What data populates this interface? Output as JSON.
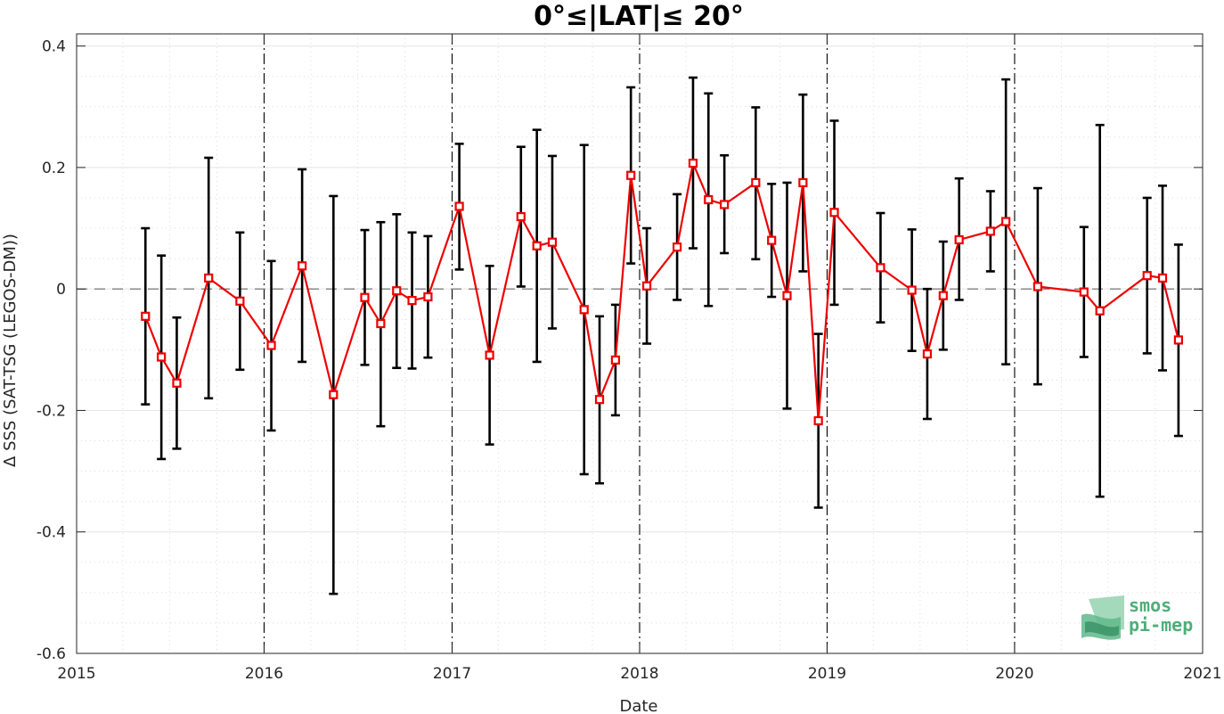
{
  "chart_data": {
    "type": "line",
    "title": "0°≤|LAT|≤ 20°",
    "xlabel": "Date",
    "ylabel": "Δ SSS (SAT-TSG (LEGOS-DM))",
    "xlim": [
      "2015-01-01",
      "2021-01-01"
    ],
    "ylim": [
      -0.6,
      0.42
    ],
    "x_ticks": [
      "2015",
      "2016",
      "2017",
      "2018",
      "2019",
      "2020",
      "2021"
    ],
    "y_ticks": [
      {
        "value": 0.4,
        "label": "0.4"
      },
      {
        "value": 0.2,
        "label": "0.2"
      },
      {
        "value": 0,
        "label": "0"
      },
      {
        "value": -0.2,
        "label": "-0.2"
      },
      {
        "value": -0.4,
        "label": "-0.4"
      },
      {
        "value": -0.6,
        "label": "-0.6"
      }
    ],
    "year_boundaries": [
      "2016-01-01",
      "2017-01-01",
      "2018-01-01",
      "2019-01-01",
      "2020-01-01"
    ],
    "reference_line": 0,
    "grid": "minor dotted",
    "series": [
      {
        "color": "#ee0000",
        "marker": "square",
        "errorbar_color": "#000000",
        "points": [
          {
            "date": "2015-05-15",
            "mean": -0.045,
            "low": -0.19,
            "high": 0.1
          },
          {
            "date": "2015-06-15",
            "mean": -0.112,
            "low": -0.28,
            "high": 0.055
          },
          {
            "date": "2015-07-15",
            "mean": -0.155,
            "low": -0.263,
            "high": -0.047
          },
          {
            "date": "2015-09-15",
            "mean": 0.018,
            "low": -0.18,
            "high": 0.216
          },
          {
            "date": "2015-11-15",
            "mean": -0.02,
            "low": -0.133,
            "high": 0.093
          },
          {
            "date": "2016-01-15",
            "mean": -0.093,
            "low": -0.233,
            "high": 0.046
          },
          {
            "date": "2016-03-15",
            "mean": 0.038,
            "low": -0.12,
            "high": 0.197
          },
          {
            "date": "2016-05-15",
            "mean": -0.174,
            "low": -0.502,
            "high": 0.153
          },
          {
            "date": "2016-07-15",
            "mean": -0.014,
            "low": -0.125,
            "high": 0.097
          },
          {
            "date": "2016-08-15",
            "mean": -0.057,
            "low": -0.226,
            "high": 0.11
          },
          {
            "date": "2016-09-15",
            "mean": -0.003,
            "low": -0.13,
            "high": 0.123
          },
          {
            "date": "2016-10-15",
            "mean": -0.019,
            "low": -0.131,
            "high": 0.093
          },
          {
            "date": "2016-11-15",
            "mean": -0.013,
            "low": -0.113,
            "high": 0.087
          },
          {
            "date": "2017-01-15",
            "mean": 0.136,
            "low": 0.032,
            "high": 0.239
          },
          {
            "date": "2017-03-15",
            "mean": -0.109,
            "low": -0.256,
            "high": 0.038
          },
          {
            "date": "2017-05-15",
            "mean": 0.119,
            "low": 0.004,
            "high": 0.234
          },
          {
            "date": "2017-06-15",
            "mean": 0.071,
            "low": -0.12,
            "high": 0.262
          },
          {
            "date": "2017-07-15",
            "mean": 0.077,
            "low": -0.065,
            "high": 0.219
          },
          {
            "date": "2017-09-15",
            "mean": -0.034,
            "low": -0.305,
            "high": 0.237
          },
          {
            "date": "2017-10-15",
            "mean": -0.182,
            "low": -0.32,
            "high": -0.045
          },
          {
            "date": "2017-11-15",
            "mean": -0.117,
            "low": -0.208,
            "high": -0.026
          },
          {
            "date": "2017-12-15",
            "mean": 0.187,
            "low": 0.042,
            "high": 0.332
          },
          {
            "date": "2018-01-15",
            "mean": 0.005,
            "low": -0.09,
            "high": 0.1
          },
          {
            "date": "2018-03-15",
            "mean": 0.069,
            "low": -0.018,
            "high": 0.156
          },
          {
            "date": "2018-04-15",
            "mean": 0.207,
            "low": 0.067,
            "high": 0.348
          },
          {
            "date": "2018-05-15",
            "mean": 0.147,
            "low": -0.028,
            "high": 0.322
          },
          {
            "date": "2018-06-15",
            "mean": 0.139,
            "low": 0.059,
            "high": 0.22
          },
          {
            "date": "2018-08-15",
            "mean": 0.175,
            "low": 0.049,
            "high": 0.299
          },
          {
            "date": "2018-09-15",
            "mean": 0.08,
            "low": -0.013,
            "high": 0.173
          },
          {
            "date": "2018-10-15",
            "mean": -0.011,
            "low": -0.197,
            "high": 0.175
          },
          {
            "date": "2018-11-15",
            "mean": 0.175,
            "low": 0.029,
            "high": 0.32
          },
          {
            "date": "2018-12-15",
            "mean": -0.217,
            "low": -0.36,
            "high": -0.074
          },
          {
            "date": "2019-01-15",
            "mean": 0.126,
            "low": -0.026,
            "high": 0.277
          },
          {
            "date": "2019-04-15",
            "mean": 0.035,
            "low": -0.055,
            "high": 0.125
          },
          {
            "date": "2019-06-15",
            "mean": -0.002,
            "low": -0.102,
            "high": 0.098
          },
          {
            "date": "2019-07-15",
            "mean": -0.107,
            "low": -0.214,
            "high": 0.0
          },
          {
            "date": "2019-08-15",
            "mean": -0.011,
            "low": -0.1,
            "high": 0.078
          },
          {
            "date": "2019-09-15",
            "mean": 0.081,
            "low": -0.018,
            "high": 0.182
          },
          {
            "date": "2019-11-15",
            "mean": 0.095,
            "low": 0.029,
            "high": 0.161
          },
          {
            "date": "2019-12-15",
            "mean": 0.111,
            "low": -0.124,
            "high": 0.345
          },
          {
            "date": "2020-02-15",
            "mean": 0.004,
            "low": -0.157,
            "high": 0.166
          },
          {
            "date": "2020-05-15",
            "mean": -0.005,
            "low": -0.112,
            "high": 0.102
          },
          {
            "date": "2020-06-15",
            "mean": -0.036,
            "low": -0.342,
            "high": 0.27
          },
          {
            "date": "2020-09-15",
            "mean": 0.022,
            "low": -0.106,
            "high": 0.15
          },
          {
            "date": "2020-10-15",
            "mean": 0.018,
            "low": -0.134,
            "high": 0.17
          },
          {
            "date": "2020-11-15",
            "mean": -0.084,
            "low": -0.242,
            "high": 0.073
          }
        ]
      }
    ]
  },
  "logo": {
    "line1": "smos",
    "line2": "pi-mep",
    "color": "#4fae7a",
    "color_dark": "#2f8a5c"
  }
}
